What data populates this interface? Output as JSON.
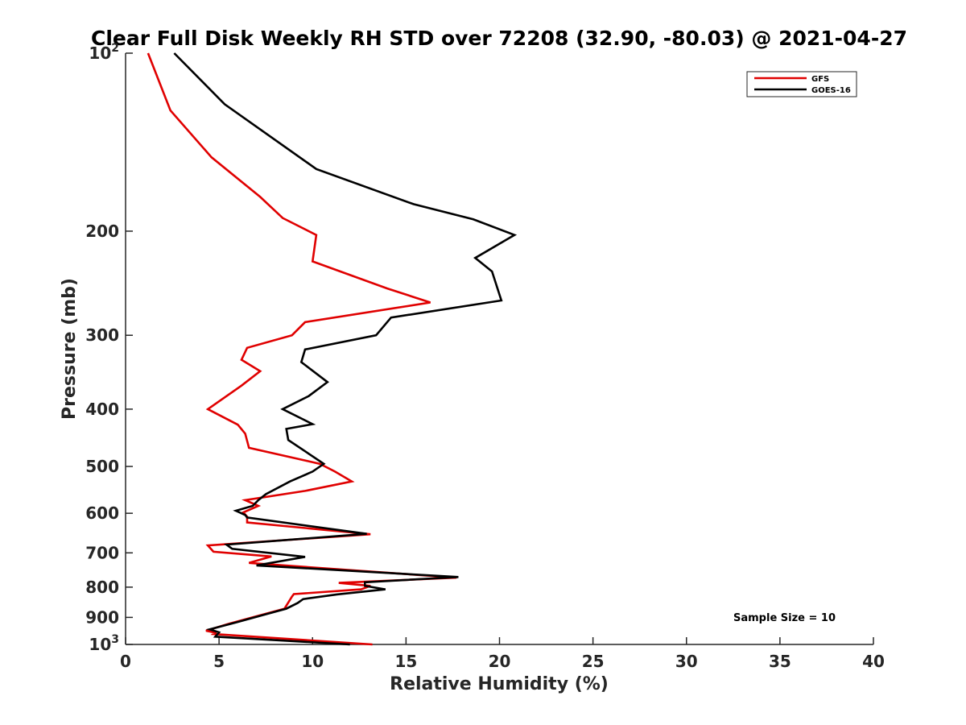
{
  "chart_data": {
    "type": "line",
    "title": "Clear Full Disk Weekly RH STD over 72208 (32.90, -80.03) @ 2021-04-27",
    "xlabel": "Relative Humidity (%)",
    "ylabel": "Pressure (mb)",
    "xlim": [
      0,
      40
    ],
    "ylim": [
      100,
      1000
    ],
    "y_scale": "log",
    "y_reversed": true,
    "x_ticks": [
      "0",
      "5",
      "10",
      "15",
      "20",
      "25",
      "30",
      "35",
      "40"
    ],
    "y_ticks": [
      {
        "value": 100,
        "base": "10",
        "exp": "2"
      },
      {
        "value": 200,
        "label": "200"
      },
      {
        "value": 300,
        "label": "300"
      },
      {
        "value": 400,
        "label": "400"
      },
      {
        "value": 500,
        "label": "500"
      },
      {
        "value": 600,
        "label": "600"
      },
      {
        "value": 700,
        "label": "700"
      },
      {
        "value": 800,
        "label": "800"
      },
      {
        "value": 900,
        "label": "900"
      },
      {
        "value": 1000,
        "base": "10",
        "exp": "3"
      }
    ],
    "legend": {
      "position": "top-right",
      "entries": [
        "GFS",
        "GOES-16"
      ]
    },
    "annotation": "Sample Size = 10",
    "grid": false,
    "series": [
      {
        "name": "GFS",
        "color": "#e00000",
        "points": [
          [
            1.2,
            100
          ],
          [
            2.4,
            125
          ],
          [
            4.6,
            150
          ],
          [
            7.2,
            175
          ],
          [
            8.4,
            190
          ],
          [
            10.2,
            203
          ],
          [
            10.0,
            225
          ],
          [
            14.0,
            250
          ],
          [
            16.3,
            264
          ],
          [
            9.6,
            285
          ],
          [
            8.9,
            300
          ],
          [
            6.5,
            315
          ],
          [
            6.2,
            330
          ],
          [
            7.2,
            345
          ],
          [
            6.2,
            365
          ],
          [
            4.4,
            400
          ],
          [
            6.0,
            425
          ],
          [
            6.4,
            440
          ],
          [
            6.6,
            465
          ],
          [
            10.4,
            495
          ],
          [
            11.2,
            510
          ],
          [
            12.1,
            530
          ],
          [
            9.6,
            550
          ],
          [
            6.4,
            570
          ],
          [
            7.1,
            583
          ],
          [
            6.3,
            598
          ],
          [
            6.5,
            608
          ],
          [
            6.5,
            622
          ],
          [
            13.1,
            651
          ],
          [
            4.4,
            680
          ],
          [
            4.7,
            697
          ],
          [
            7.8,
            710
          ],
          [
            6.6,
            728
          ],
          [
            17.7,
            771
          ],
          [
            11.4,
            787
          ],
          [
            13.1,
            796
          ],
          [
            12.6,
            807
          ],
          [
            9.0,
            822
          ],
          [
            8.9,
            830
          ],
          [
            8.5,
            870
          ],
          [
            5.5,
            923
          ],
          [
            4.3,
            948
          ],
          [
            4.8,
            955
          ],
          [
            4.7,
            960
          ],
          [
            13.2,
            1000
          ]
        ]
      },
      {
        "name": "GOES-16",
        "color": "#000000",
        "points": [
          [
            2.6,
            100
          ],
          [
            5.3,
            122
          ],
          [
            10.2,
            157
          ],
          [
            15.4,
            180
          ],
          [
            18.6,
            191
          ],
          [
            20.8,
            203
          ],
          [
            18.7,
            222
          ],
          [
            19.6,
            234
          ],
          [
            20.1,
            262
          ],
          [
            14.2,
            280
          ],
          [
            13.4,
            300
          ],
          [
            9.6,
            317
          ],
          [
            9.4,
            333
          ],
          [
            10.8,
            360
          ],
          [
            9.8,
            380
          ],
          [
            8.4,
            400
          ],
          [
            10.0,
            424
          ],
          [
            8.6,
            432
          ],
          [
            8.7,
            451
          ],
          [
            10.6,
            495
          ],
          [
            10.0,
            510
          ],
          [
            8.8,
            530
          ],
          [
            7.5,
            557
          ],
          [
            7.1,
            570
          ],
          [
            6.8,
            583
          ],
          [
            5.9,
            594
          ],
          [
            6.4,
            604
          ],
          [
            6.5,
            610
          ],
          [
            12.9,
            650
          ],
          [
            5.4,
            678
          ],
          [
            5.7,
            689
          ],
          [
            9.6,
            711
          ],
          [
            7.0,
            735
          ],
          [
            17.8,
            769
          ],
          [
            12.8,
            785
          ],
          [
            12.8,
            796
          ],
          [
            13.9,
            807
          ],
          [
            11.3,
            823
          ],
          [
            9.5,
            838
          ],
          [
            9.2,
            851
          ],
          [
            8.6,
            870
          ],
          [
            5.9,
            918
          ],
          [
            4.5,
            943
          ],
          [
            5.0,
            954
          ],
          [
            4.8,
            970
          ],
          [
            12.0,
            1000
          ]
        ]
      }
    ]
  }
}
